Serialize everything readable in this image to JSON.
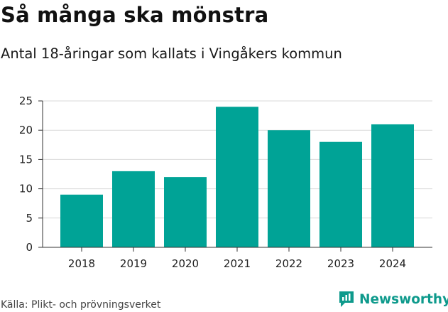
{
  "header": {
    "title": "Så många ska mönstra",
    "subtitle": "Antal 18-åringar som kallats i Vingåkers kommun"
  },
  "footer": {
    "source": "Källa: Plikt- och prövningsverket",
    "brand": "Newsworthy"
  },
  "colors": {
    "bar": "#00a396",
    "grid": "#d9d9d9",
    "axis": "#333333",
    "brand": "#0e9a8c"
  },
  "chart_data": {
    "type": "bar",
    "title": "Så många ska mönstra",
    "subtitle": "Antal 18-åringar som kallats i Vingåkers kommun",
    "xlabel": "",
    "ylabel": "",
    "categories": [
      "2018",
      "2019",
      "2020",
      "2021",
      "2022",
      "2023",
      "2024"
    ],
    "values": [
      9,
      13,
      12,
      24,
      20,
      18,
      21
    ],
    "ylim": [
      0,
      25
    ],
    "yticks": [
      "0",
      "5",
      "10",
      "15",
      "20",
      "25"
    ],
    "grid": true,
    "legend": "none"
  }
}
